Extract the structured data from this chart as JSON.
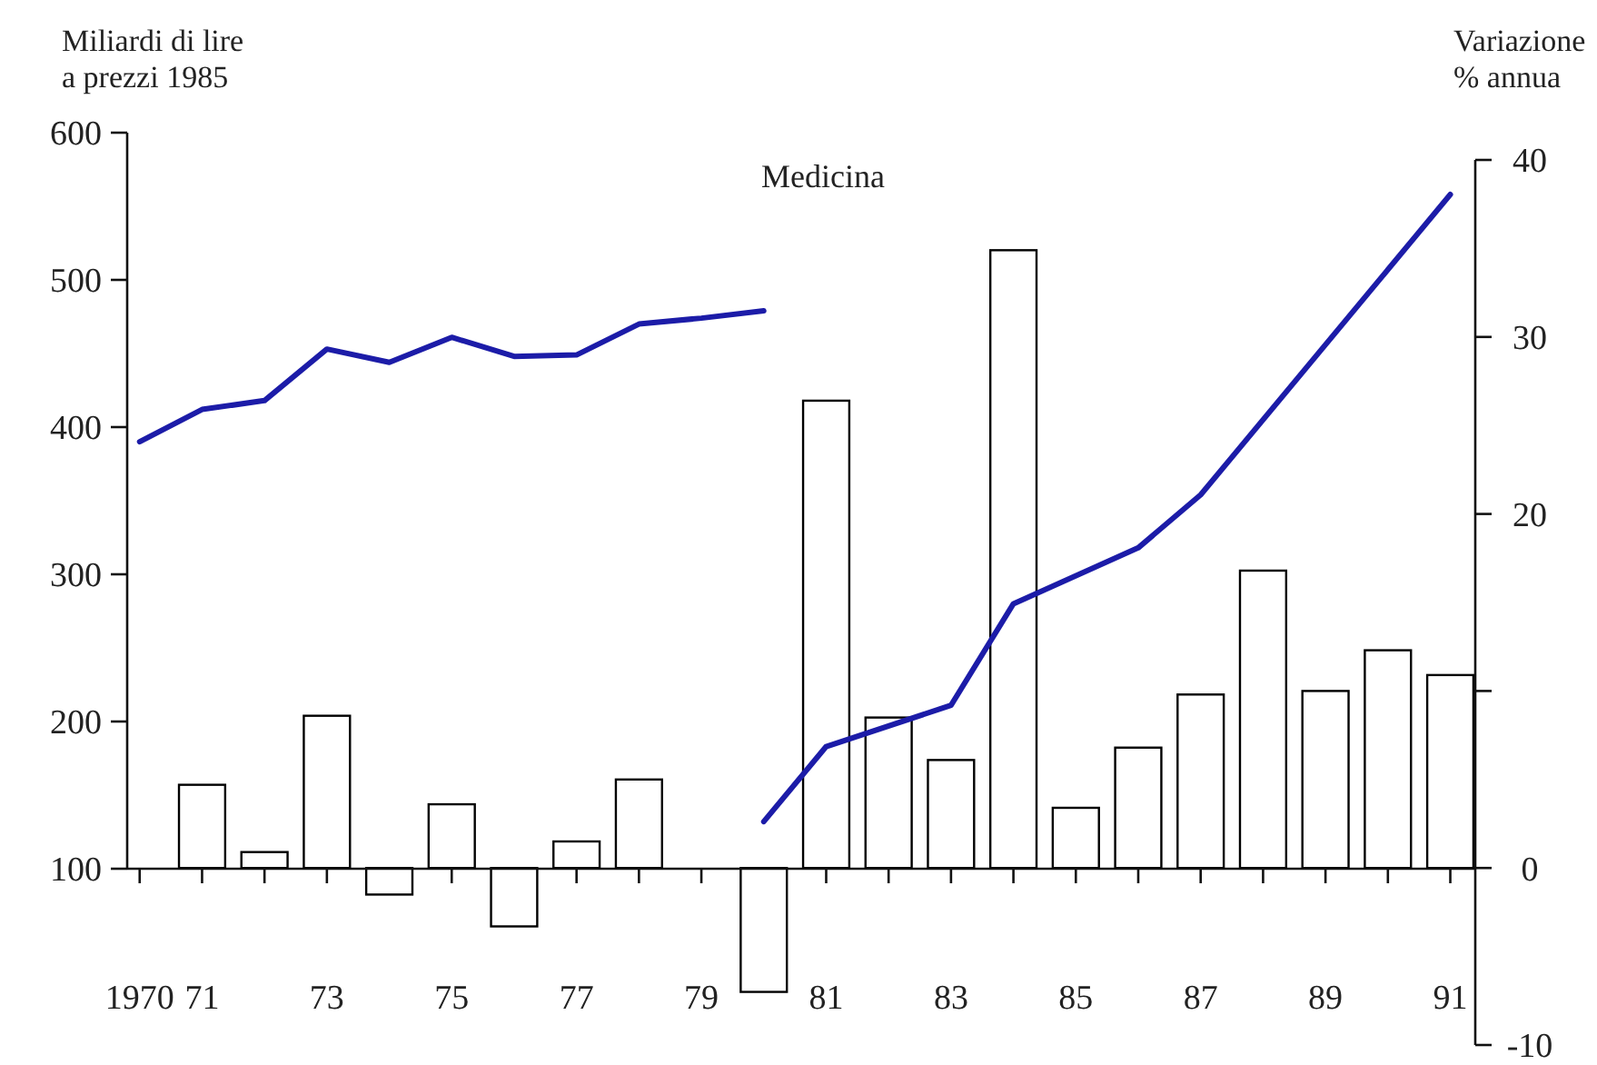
{
  "chart_data": {
    "type": "bar",
    "title": "Medicina",
    "ylabel": "Miliardi di lire\na prezzi 1985",
    "y2label": "Variazione\n% annua",
    "xlim": [
      1969.8,
      1991.4
    ],
    "xticks": [
      {
        "value": 1970,
        "label": "1970"
      },
      {
        "value": 1971,
        "label": "71"
      },
      {
        "value": 1972,
        "label": null
      },
      {
        "value": 1973,
        "label": "73"
      },
      {
        "value": 1975,
        "label": "75"
      },
      {
        "value": 1977,
        "label": "77"
      },
      {
        "value": 1978,
        "label": null
      },
      {
        "value": 1979,
        "label": "79"
      },
      {
        "value": 1981,
        "label": "81"
      },
      {
        "value": 1982,
        "label": null
      },
      {
        "value": 1983,
        "label": "83"
      },
      {
        "value": 1984,
        "label": null
      },
      {
        "value": 1985,
        "label": "85"
      },
      {
        "value": 1986,
        "label": null
      },
      {
        "value": 1987,
        "label": "87"
      },
      {
        "value": 1988,
        "label": null
      },
      {
        "value": 1989,
        "label": "89"
      },
      {
        "value": 1990,
        "label": null
      },
      {
        "value": 1991,
        "label": "91"
      }
    ],
    "ylim": [
      100,
      600
    ],
    "yticks": [
      100,
      200,
      300,
      400,
      500,
      600
    ],
    "y2lim": [
      -10,
      40
    ],
    "y2ticks": [
      -10,
      0,
      {
        "value": 10,
        "label": null
      },
      20,
      30,
      40
    ],
    "grid": false,
    "series": [
      {
        "axis": "y2",
        "color": "#ffffff",
        "x": [
          1971,
          1972,
          1973,
          1974,
          1975,
          1976,
          1977,
          1978,
          1980,
          1981,
          1982,
          1983,
          1984,
          1985,
          1986,
          1987,
          1988,
          1989,
          1990,
          1991
        ],
        "values": [
          4.7,
          0.9,
          8.6,
          -1.5,
          3.6,
          -3.3,
          1.5,
          5.0,
          -7.0,
          26.4,
          8.5,
          6.1,
          34.9,
          3.4,
          6.8,
          9.8,
          16.8,
          10.0,
          12.3,
          10.9
        ]
      },
      {
        "type": "line",
        "color": "#1c1ca8",
        "x": [
          1970,
          1971,
          1972,
          1973,
          1974,
          1975,
          1976,
          1977,
          1978,
          1979,
          1980
        ],
        "values": [
          390,
          412,
          418,
          453,
          444,
          461,
          448,
          449,
          470,
          474,
          479
        ]
      },
      {
        "type": "line",
        "color": "#1c1ca8",
        "x": [
          1980,
          1981,
          1983,
          1984,
          1986,
          1987,
          1991
        ],
        "values": [
          132,
          183,
          211,
          280,
          318,
          354,
          558
        ]
      }
    ]
  }
}
